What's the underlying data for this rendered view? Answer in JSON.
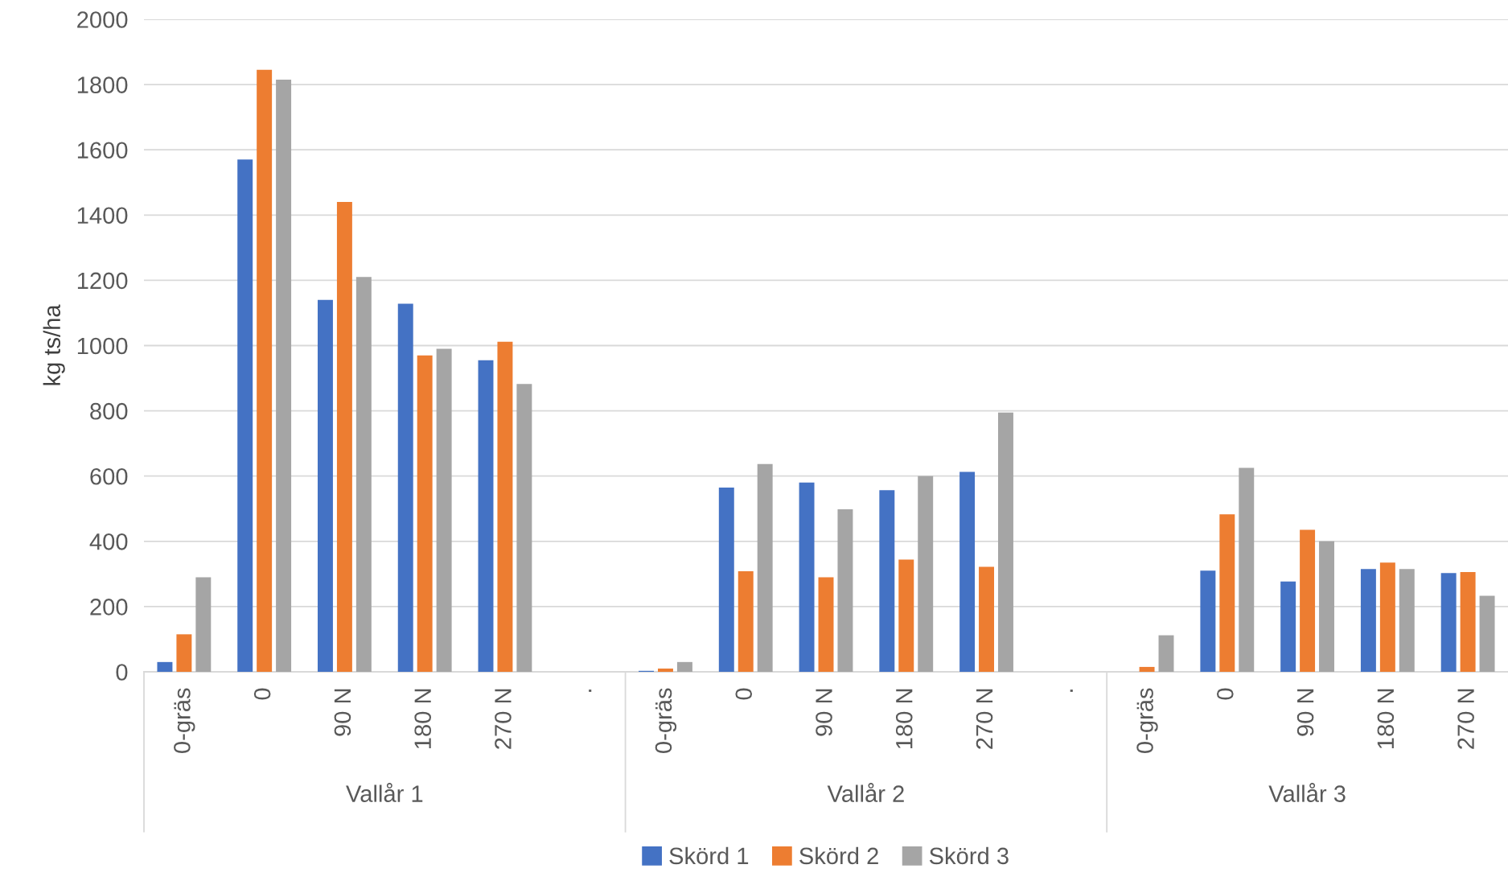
{
  "chart_data": {
    "type": "bar",
    "ylabel": "kg ts/ha",
    "categories": [
      "0-gräs",
      "0",
      "90 N",
      "180 N",
      "270 N",
      ".",
      "0-gräs",
      "0",
      "90 N",
      "180 N",
      "270 N",
      ".",
      "0-gräs",
      "0",
      "90 N",
      "180 N",
      "270 N"
    ],
    "annotations": [
      "Vallår 1",
      "Vallår 2",
      "Vallår 3"
    ],
    "series": [
      {
        "name": "Skörd 1",
        "color": "#4472c4",
        "values": [
          30,
          1570,
          1140,
          1128,
          955,
          null,
          3,
          565,
          580,
          557,
          613,
          null,
          0,
          310,
          277,
          315,
          303
        ]
      },
      {
        "name": "Skörd 2",
        "color": "#ed7d31",
        "values": [
          115,
          1845,
          1440,
          970,
          1012,
          null,
          10,
          308,
          290,
          344,
          322,
          null,
          15,
          483,
          435,
          335,
          306
        ]
      },
      {
        "name": "Skörd 3",
        "color": "#a5a5a5",
        "values": [
          290,
          1815,
          1210,
          990,
          882,
          null,
          30,
          637,
          498,
          600,
          795,
          null,
          112,
          625,
          400,
          315,
          233
        ]
      }
    ],
    "ylim": [
      0,
      2000
    ],
    "yticks": [
      0,
      200,
      400,
      600,
      800,
      1000,
      1200,
      1400,
      1600,
      1800,
      2000
    ],
    "grid": "y",
    "legend": "bottom"
  }
}
